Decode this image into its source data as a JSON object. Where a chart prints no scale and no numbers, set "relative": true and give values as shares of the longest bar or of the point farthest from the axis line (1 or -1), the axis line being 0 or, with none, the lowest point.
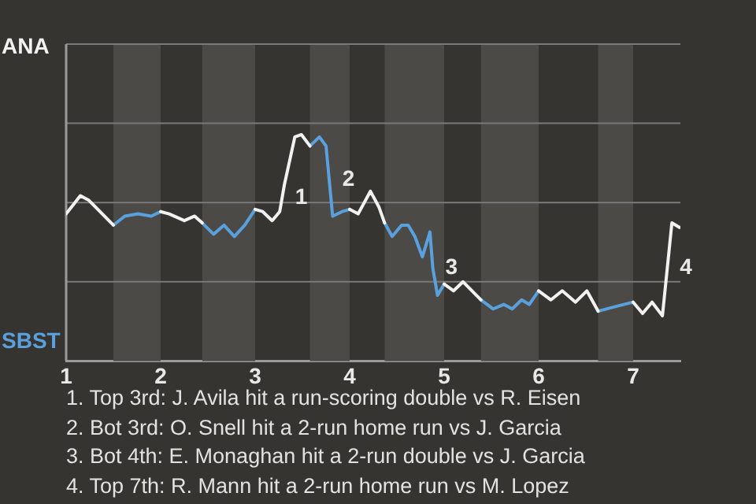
{
  "chart_data": {
    "type": "line",
    "relative": true,
    "x": [
      1,
      1.15,
      1.24,
      1.5,
      1.62,
      1.76,
      1.9,
      2,
      2.09,
      2.25,
      2.36,
      2.44,
      2.56,
      2.67,
      2.78,
      2.89,
      3,
      3.08,
      3.18,
      3.26,
      3.31,
      3.42,
      3.49,
      3.58,
      3.68,
      3.75,
      3.82,
      3.92,
      4,
      4.09,
      4.22,
      4.31,
      4.37,
      4.45,
      4.55,
      4.62,
      4.69,
      4.77,
      4.85,
      4.88,
      4.93,
      5,
      5.1,
      5.2,
      5.39,
      5.52,
      5.63,
      5.72,
      5.82,
      5.9,
      6,
      6.13,
      6.25,
      6.39,
      6.51,
      6.63,
      6.81,
      7,
      7.1,
      7.2,
      7.31,
      7.41,
      7.49
    ],
    "series": [
      {
        "name": "ANA",
        "color": "#f2f2f2",
        "values": [
          0.65,
          0.73,
          0.71,
          0.6,
          null,
          null,
          null,
          0.66,
          0.65,
          0.62,
          0.64,
          0.61,
          null,
          null,
          null,
          null,
          0.67,
          0.66,
          0.62,
          0.66,
          0.78,
          0.99,
          1,
          0.95,
          null,
          null,
          null,
          null,
          0.67,
          0.65,
          0.75,
          0.68,
          0.61,
          null,
          null,
          null,
          null,
          null,
          null,
          null,
          null,
          0.34,
          0.31,
          0.35,
          0.27,
          null,
          null,
          null,
          null,
          null,
          0.31,
          0.27,
          0.31,
          0.26,
          0.31,
          0.22,
          null,
          0.26,
          0.21,
          0.26,
          0.2,
          0.61,
          0.59
        ]
      },
      {
        "name": "SBST",
        "color": "#5aa0dc",
        "values": [
          null,
          null,
          null,
          0.6,
          0.64,
          0.65,
          0.64,
          0.66,
          null,
          null,
          null,
          0.61,
          0.56,
          0.6,
          0.55,
          0.6,
          0.67,
          null,
          null,
          null,
          null,
          null,
          null,
          0.95,
          0.99,
          0.95,
          0.64,
          0.66,
          0.67,
          null,
          null,
          null,
          0.61,
          0.55,
          0.6,
          0.6,
          0.55,
          0.46,
          0.57,
          0.41,
          0.29,
          0.34,
          null,
          null,
          0.27,
          0.23,
          0.25,
          0.23,
          0.27,
          0.25,
          0.31,
          null,
          null,
          null,
          null,
          0.22,
          0.24,
          0.26,
          null,
          null,
          null,
          null,
          null
        ]
      }
    ],
    "xlim": [
      1,
      7.5
    ],
    "xticks": [
      1,
      2,
      3,
      4,
      5,
      6,
      7
    ],
    "ref_lines": [
      {
        "axis": "y",
        "value": 0.35,
        "color": "#7a7a7a"
      },
      {
        "axis": "y",
        "value": 0.7,
        "color": "#7a7a7a"
      },
      {
        "axis": "y",
        "value": 1.05,
        "color": "#7a7a7a"
      },
      {
        "axis": "y",
        "value": 1.4,
        "color": "#7a7a7a"
      }
    ],
    "legend": false,
    "marker": "none",
    "line_style": "solid",
    "bands": [
      {
        "axis": "x",
        "from": 1.5,
        "to": 2,
        "color": "#4c4a47"
      },
      {
        "axis": "x",
        "from": 2.44,
        "to": 3,
        "color": "#4c4a47"
      },
      {
        "axis": "x",
        "from": 3.58,
        "to": 4,
        "color": "#4c4a47"
      },
      {
        "axis": "x",
        "from": 4.37,
        "to": 5,
        "color": "#4c4a47"
      },
      {
        "axis": "x",
        "from": 5.39,
        "to": 6,
        "color": "#4c4a47"
      },
      {
        "axis": "x",
        "from": 6.63,
        "to": 7,
        "color": "#4c4a47"
      }
    ],
    "annotations": [
      {
        "text": "1",
        "x": 3.29,
        "y": 0.72
      },
      {
        "text": "2",
        "x": 3.79,
        "y": 0.8
      },
      {
        "text": "3",
        "x": 4.88,
        "y": 0.41
      },
      {
        "text": "4",
        "x": 7.36,
        "y": 0.41
      },
      "1. Top 3rd: J. Avila hit a run-scoring double vs R. Eisen",
      "2. Bot 3rd: O. Snell hit a 2-run home run vs J. Garcia",
      "3. Bot 4th: E. Monaghan hit a 2-run double vs J. Garcia",
      "4. Top 7th: R. Mann hit a 2-run home run vs M. Lopez"
    ]
  }
}
